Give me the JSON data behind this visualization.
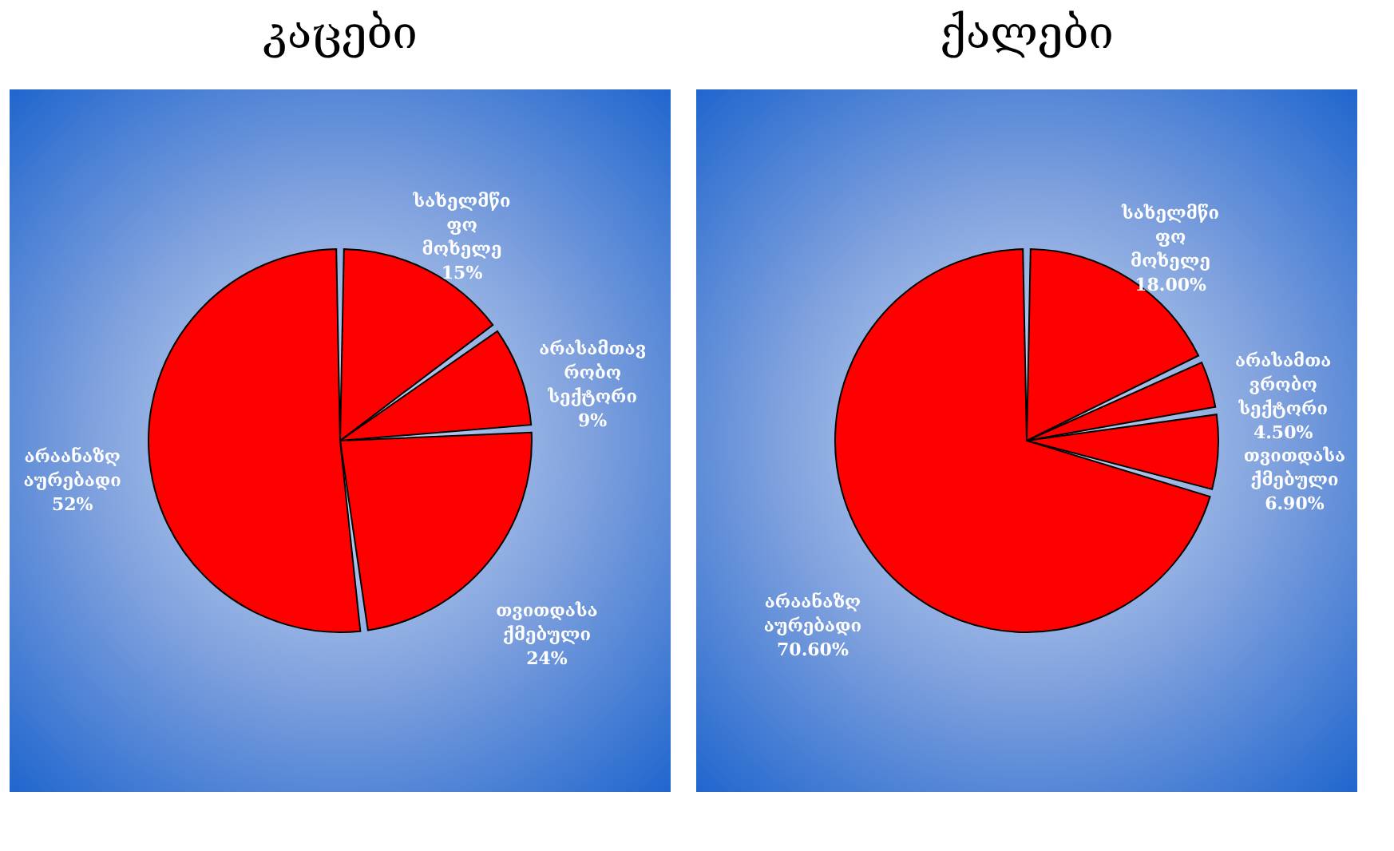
{
  "chart_data": [
    {
      "type": "pie",
      "title": "კაცები",
      "categories": [
        "სახელმწი\nფო\nმოხელე",
        "არასამთავ\nრობო\nსექტორი",
        "თვითდასა\nქმებული",
        "არაანაზღ\nაურებადი"
      ],
      "values": [
        15,
        9,
        24,
        52
      ],
      "value_labels": [
        "15%",
        "9%",
        "24%",
        "52%"
      ],
      "colors": [
        "#ff0000",
        "#ff0000",
        "#ff0000",
        "#ff0000"
      ]
    },
    {
      "type": "pie",
      "title": "ქალები",
      "categories": [
        "სახელმწი\nფო\nმოხელე",
        "არასამთა\nვრობო\nსექტორი",
        "თვითდასა\nქმებული",
        "არაანაზღ\nაურებადი"
      ],
      "values": [
        18,
        4.5,
        6.9,
        70.6
      ],
      "value_labels": [
        "18.00%",
        "4.50%",
        "6.90%",
        "70.60%"
      ],
      "colors": [
        "#ff0000",
        "#ff0000",
        "#ff0000",
        "#ff0000"
      ]
    }
  ]
}
